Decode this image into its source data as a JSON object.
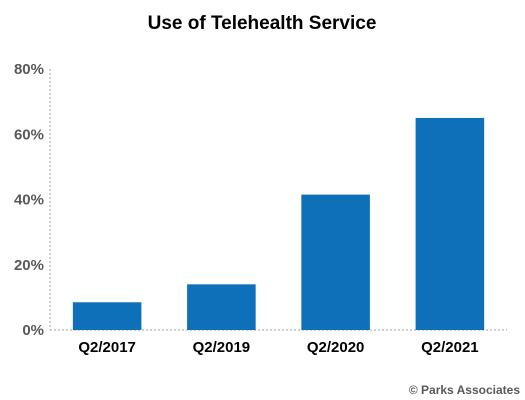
{
  "chart_data": {
    "type": "bar",
    "title": "Use of Telehealth Service",
    "categories": [
      "Q2/2017",
      "Q2/2019",
      "Q2/2020",
      "Q2/2021"
    ],
    "values": [
      8.5,
      14,
      41.5,
      65
    ],
    "unit": "%",
    "ylim": [
      0,
      80
    ],
    "yticks": [
      "0%",
      "20%",
      "40%",
      "60%",
      "80%"
    ],
    "ytick_values": [
      0,
      20,
      40,
      60,
      80
    ],
    "grid": false,
    "bar_color": "#0e70b9",
    "credit": "© Parks Associates"
  }
}
